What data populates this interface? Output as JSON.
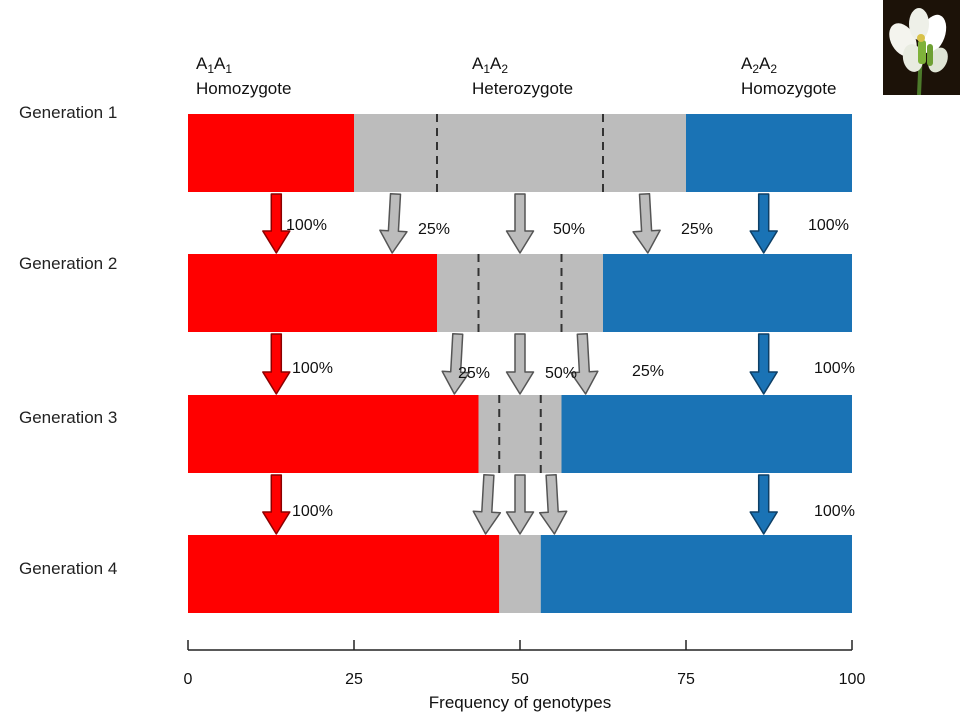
{
  "chart_data": {
    "type": "bar",
    "stacked": true,
    "orientation": "horizontal",
    "xlabel": "Frequency of genotypes",
    "xlim": [
      0,
      100
    ],
    "xticks": [
      0,
      25,
      50,
      75,
      100
    ],
    "categories": [
      "Generation 1",
      "Generation 2",
      "Generation 3",
      "Generation 4"
    ],
    "series": [
      {
        "color": "#ff0000",
        "values": [
          25,
          37.5,
          43.75,
          46.875
        ]
      },
      {
        "color": "#bcbcbc",
        "values": [
          50,
          25,
          12.5,
          6.25
        ]
      },
      {
        "color": "#1a73b5",
        "values": [
          25,
          37.5,
          43.75,
          46.875
        ]
      }
    ],
    "genotype_headers": [
      {
        "genotype_base": [
          "A",
          "A"
        ],
        "subscripts": [
          "1",
          "1"
        ],
        "type": "Homozygote"
      },
      {
        "genotype_base": [
          "A",
          "A"
        ],
        "subscripts": [
          "1",
          "2"
        ],
        "type": "Heterozygote"
      },
      {
        "genotype_base": [
          "A",
          "A"
        ],
        "subscripts": [
          "2",
          "2"
        ],
        "type": "Homozygote"
      }
    ],
    "transition_labels": [
      [
        "100%",
        "25%",
        "50%",
        "25%",
        "100%"
      ],
      [
        "100%",
        "25%",
        "50%",
        "25%",
        "100%"
      ],
      [
        "100%",
        "100%"
      ]
    ]
  },
  "image_icon": "flower-photo-icon"
}
